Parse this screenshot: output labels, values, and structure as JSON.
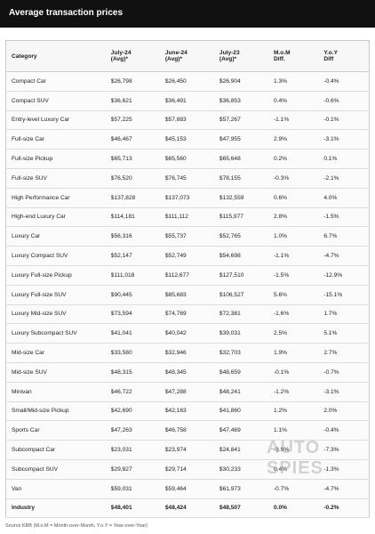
{
  "header": {
    "title": "Average transaction prices"
  },
  "table": {
    "columns": [
      "Category",
      "July-24\n(Avg)*",
      "June-24\n(Avg)*",
      "July-23\n(Avg)*",
      "M.o.M\nDiff.",
      "Y.o.Y\nDiff"
    ],
    "rows": [
      [
        "Compact Car",
        "$26,798",
        "$26,450",
        "$26,904",
        "1.3%",
        "-0.4%"
      ],
      [
        "Compact SUV",
        "$36,621",
        "$36,491",
        "$36,853",
        "0.4%",
        "-0.6%"
      ],
      [
        "Entry-level Luxury Car",
        "$57,225",
        "$57,883",
        "$57,267",
        "-1.1%",
        "-0.1%"
      ],
      [
        "Full-size Car",
        "$46,467",
        "$45,153",
        "$47,955",
        "2.9%",
        "-3.1%"
      ],
      [
        "Full-size Pickup",
        "$65,713",
        "$65,560",
        "$65,648",
        "0.2%",
        "0.1%"
      ],
      [
        "Full-size SUV",
        "$76,520",
        "$76,745",
        "$78,155",
        "-0.3%",
        "-2.1%"
      ],
      [
        "High Performance Car",
        "$137,828",
        "$137,073",
        "$132,559",
        "0.6%",
        "4.0%"
      ],
      [
        "High-end Luxury Car",
        "$114,181",
        "$111,112",
        "$115,977",
        "2.8%",
        "-1.5%"
      ],
      [
        "Luxury Car",
        "$56,316",
        "$55,737",
        "$52,765",
        "1.0%",
        "6.7%"
      ],
      [
        "Luxury Compact SUV",
        "$52,147",
        "$52,749",
        "$54,698",
        "-1.1%",
        "-4.7%"
      ],
      [
        "Luxury Full-size Pickup",
        "$111,018",
        "$112,677",
        "$127,510",
        "-1.5%",
        "-12.9%"
      ],
      [
        "Luxury Full-size SUV",
        "$90,445",
        "$85,683",
        "$106,527",
        "5.6%",
        "-15.1%"
      ],
      [
        "Luxury Mid-size SUV",
        "$73,594",
        "$74,769",
        "$72,381",
        "-1.6%",
        "1.7%"
      ],
      [
        "Luxury Subcompact SUV",
        "$41,041",
        "$40,042",
        "$39,031",
        "2.5%",
        "5.1%"
      ],
      [
        "Mid-size Car",
        "$33,580",
        "$32,946",
        "$32,703",
        "1.9%",
        "2.7%"
      ],
      [
        "Mid-size SUV",
        "$48,315",
        "$48,345",
        "$48,659",
        "-0.1%",
        "-0.7%"
      ],
      [
        "Minivan",
        "$46,722",
        "$47,288",
        "$48,241",
        "-1.2%",
        "-3.1%"
      ],
      [
        "Small/Mid-size Pickup",
        "$42,690",
        "$42,163",
        "$41,860",
        "1.2%",
        "2.0%"
      ],
      [
        "Sports Car",
        "$47,263",
        "$46,758",
        "$47,469",
        "1.1%",
        "-0.4%"
      ],
      [
        "Subcompact Car",
        "$23,031",
        "$23,974",
        "$24,841",
        "-3.9%",
        "-7.3%"
      ],
      [
        "Subcompact SUV",
        "$29,827",
        "$29,714",
        "$30,233",
        "0.4%",
        "-1.3%"
      ],
      [
        "Van",
        "$59,031",
        "$59,464",
        "$61,973",
        "-0.7%",
        "-4.7%"
      ],
      [
        "Industry",
        "$48,401",
        "$48,424",
        "$48,507",
        "0.0%",
        "-0.2%"
      ]
    ]
  },
  "footer": {
    "source": "Source KBB (M.o.M = Month-over-Month, Y.o.Y = Year-over-Year)"
  },
  "watermark": "AUTO SPIES"
}
